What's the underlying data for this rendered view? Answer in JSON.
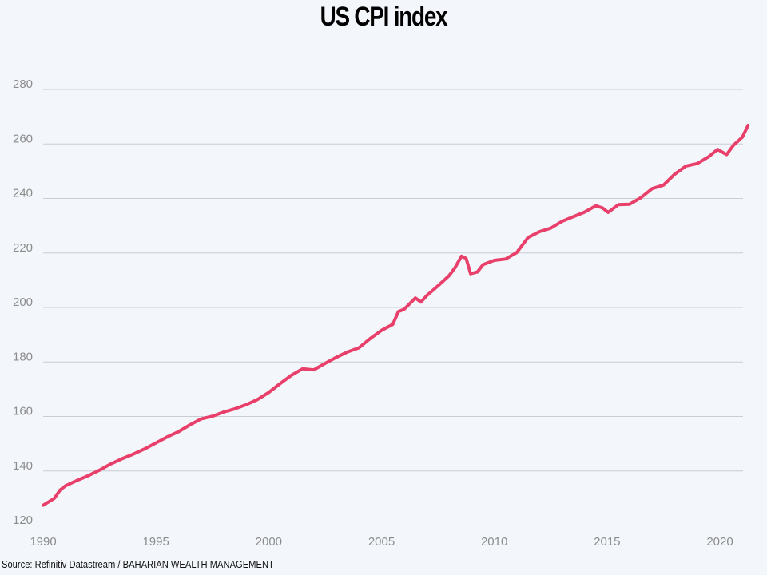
{
  "chart_data": {
    "type": "line",
    "title": "US CPI index",
    "xlabel": "",
    "ylabel": "",
    "xlim": [
      1990,
      2021.5
    ],
    "ylim": [
      120,
      285
    ],
    "x_ticks": [
      1990,
      1995,
      2000,
      2005,
      2010,
      2015,
      2020
    ],
    "y_ticks": [
      120,
      140,
      160,
      180,
      200,
      220,
      240,
      260,
      280
    ],
    "grid": "horizontal",
    "legend": "none",
    "series": [
      {
        "color": "#e8406a",
        "x": [
          1990.0,
          1990.5,
          1990.75,
          1991.0,
          1991.5,
          1992.0,
          1992.5,
          1993.0,
          1993.5,
          1994.0,
          1994.5,
          1995.0,
          1995.5,
          1996.0,
          1996.5,
          1997.0,
          1997.5,
          1998.0,
          1998.5,
          1999.0,
          1999.5,
          2000.0,
          2000.5,
          2001.0,
          2001.5,
          2002.0,
          2002.5,
          2003.0,
          2003.5,
          2004.0,
          2004.5,
          2005.0,
          2005.5,
          2005.75,
          2006.0,
          2006.5,
          2006.75,
          2007.0,
          2007.5,
          2008.0,
          2008.25,
          2008.55,
          2008.75,
          2008.95,
          2009.25,
          2009.5,
          2010.0,
          2010.5,
          2011.0,
          2011.5,
          2012.0,
          2012.5,
          2013.0,
          2013.5,
          2014.0,
          2014.5,
          2014.8,
          2015.05,
          2015.5,
          2016.0,
          2016.5,
          2017.0,
          2017.5,
          2018.0,
          2018.5,
          2019.0,
          2019.5,
          2019.9,
          2020.3,
          2020.6,
          2021.0,
          2021.25
        ],
        "y": [
          127.4,
          130.0,
          133.0,
          134.6,
          136.5,
          138.3,
          140.3,
          142.6,
          144.5,
          146.2,
          148.1,
          150.3,
          152.5,
          154.4,
          156.9,
          159.1,
          160.1,
          161.6,
          162.8,
          164.3,
          166.2,
          168.8,
          172.0,
          175.1,
          177.5,
          177.1,
          179.5,
          181.7,
          183.7,
          185.2,
          188.6,
          191.6,
          193.8,
          198.5,
          199.3,
          203.5,
          202.0,
          204.3,
          207.9,
          211.7,
          214.5,
          218.8,
          218.0,
          212.4,
          213.0,
          215.7,
          217.3,
          217.8,
          220.2,
          225.7,
          227.8,
          229.1,
          231.6,
          233.3,
          235.0,
          237.3,
          236.5,
          234.9,
          237.7,
          237.9,
          240.3,
          243.6,
          244.9,
          248.9,
          251.9,
          252.8,
          255.3,
          258.0,
          256.1,
          259.5,
          262.5,
          266.8
        ]
      }
    ]
  },
  "source": "Source: Refinitiv Datastream / BAHARIAN WEALTH MANAGEMENT"
}
